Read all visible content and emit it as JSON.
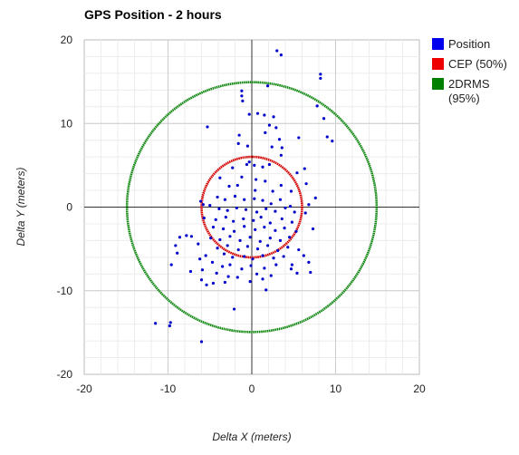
{
  "chart_data": {
    "type": "scatter",
    "title": "GPS Position - 2 hours",
    "xlabel": "Delta X (meters)",
    "ylabel": "Delta Y (meters)",
    "xlim": [
      -20,
      20
    ],
    "ylim": [
      -20,
      20
    ],
    "xticks": [
      -20,
      -10,
      0,
      10,
      20
    ],
    "yticks": [
      20,
      10,
      0,
      -10,
      -20
    ],
    "minor_grid_step": 2,
    "grid": true,
    "legend_position": "right",
    "legend": [
      {
        "label": "Position",
        "color": "#0000ee"
      },
      {
        "label": "CEP (50%)",
        "color": "#ee0000"
      },
      {
        "label": "2DRMS\n(95%)",
        "color": "#008000"
      }
    ],
    "circles": [
      {
        "name": "CEP (50%)",
        "radius": 6.0,
        "color": "#d40000"
      },
      {
        "name": "2DRMS (95%)",
        "radius": 14.9,
        "color": "#118811"
      }
    ],
    "series": [
      {
        "name": "Position",
        "color": "#0000cc",
        "points": [
          [
            3.0,
            18.7
          ],
          [
            3.5,
            18.2
          ],
          [
            8.2,
            15.9
          ],
          [
            8.2,
            15.4
          ],
          [
            -1.2,
            13.9
          ],
          [
            -1.2,
            13.3
          ],
          [
            -1.1,
            12.7
          ],
          [
            1.9,
            14.5
          ],
          [
            7.8,
            12.1
          ],
          [
            8.6,
            10.6
          ],
          [
            9.0,
            8.4
          ],
          [
            9.6,
            7.9
          ],
          [
            5.6,
            8.3
          ],
          [
            -5.3,
            9.6
          ],
          [
            2.6,
            10.8
          ],
          [
            1.5,
            11.0
          ],
          [
            2.1,
            9.8
          ],
          [
            2.9,
            9.5
          ],
          [
            -1.5,
            8.6
          ],
          [
            -0.3,
            11.1
          ],
          [
            0.7,
            11.2
          ],
          [
            1.6,
            8.9
          ],
          [
            3.3,
            8.1
          ],
          [
            -1.6,
            7.6
          ],
          [
            -0.5,
            7.3
          ],
          [
            2.4,
            7.2
          ],
          [
            3.6,
            7.1
          ],
          [
            3.5,
            6.2
          ],
          [
            -0.6,
            5.1
          ],
          [
            -0.3,
            5.4
          ],
          [
            0.3,
            5.0
          ],
          [
            1.3,
            4.8
          ],
          [
            2.1,
            5.1
          ],
          [
            6.3,
            4.6
          ],
          [
            5.4,
            4.1
          ],
          [
            6.5,
            2.8
          ],
          [
            7.6,
            1.1
          ],
          [
            6.8,
            0.3
          ],
          [
            6.4,
            -0.7
          ],
          [
            7.3,
            -2.6
          ],
          [
            -2.3,
            4.7
          ],
          [
            -1.2,
            3.6
          ],
          [
            0.5,
            3.3
          ],
          [
            1.6,
            3.1
          ],
          [
            -3.8,
            3.5
          ],
          [
            -2.7,
            2.5
          ],
          [
            -1.7,
            2.6
          ],
          [
            0.4,
            2.0
          ],
          [
            2.5,
            1.9
          ],
          [
            3.5,
            2.6
          ],
          [
            4.7,
            1.9
          ],
          [
            -4.1,
            1.2
          ],
          [
            -3.2,
            0.9
          ],
          [
            -2.0,
            1.3
          ],
          [
            -0.9,
            0.9
          ],
          [
            0.3,
            1.0
          ],
          [
            1.3,
            0.8
          ],
          [
            2.3,
            0.4
          ],
          [
            3.4,
            0.9
          ],
          [
            4.6,
            0.1
          ],
          [
            -6.1,
            0.7
          ],
          [
            -5.8,
            0.3
          ],
          [
            -5.0,
            0.2
          ],
          [
            -3.9,
            -0.2
          ],
          [
            -2.9,
            -0.4
          ],
          [
            -1.8,
            -0.1
          ],
          [
            -0.7,
            -0.3
          ],
          [
            0.6,
            -0.6
          ],
          [
            1.7,
            -0.2
          ],
          [
            2.8,
            -0.5
          ],
          [
            4.0,
            -0.1
          ],
          [
            5.1,
            -0.6
          ],
          [
            -5.7,
            -1.3
          ],
          [
            -4.3,
            -1.5
          ],
          [
            -3.1,
            -1.2
          ],
          [
            -2.2,
            -1.7
          ],
          [
            -1.0,
            -1.4
          ],
          [
            0.2,
            -1.6
          ],
          [
            1.1,
            -1.2
          ],
          [
            2.2,
            -1.9
          ],
          [
            3.6,
            -1.4
          ],
          [
            4.8,
            -1.8
          ],
          [
            -4.6,
            -2.4
          ],
          [
            -3.4,
            -2.6
          ],
          [
            -2.1,
            -2.9
          ],
          [
            -0.9,
            -2.3
          ],
          [
            0.4,
            -2.7
          ],
          [
            1.5,
            -2.4
          ],
          [
            2.8,
            -2.8
          ],
          [
            3.9,
            -2.5
          ],
          [
            5.3,
            -2.9
          ],
          [
            -8.6,
            -3.6
          ],
          [
            -7.8,
            -3.4
          ],
          [
            -7.2,
            -3.5
          ],
          [
            -4.9,
            -3.7
          ],
          [
            -3.8,
            -3.9
          ],
          [
            -2.6,
            -3.5
          ],
          [
            -1.4,
            -4.0
          ],
          [
            -0.2,
            -3.6
          ],
          [
            1.0,
            -4.1
          ],
          [
            2.2,
            -3.7
          ],
          [
            3.4,
            -4.0
          ],
          [
            4.5,
            -3.6
          ],
          [
            -9.1,
            -4.6
          ],
          [
            -6.4,
            -4.4
          ],
          [
            -4.1,
            -4.9
          ],
          [
            -2.9,
            -4.6
          ],
          [
            -1.6,
            -5.1
          ],
          [
            -0.5,
            -4.7
          ],
          [
            0.7,
            -5.0
          ],
          [
            1.9,
            -4.6
          ],
          [
            3.1,
            -5.2
          ],
          [
            4.3,
            -4.8
          ],
          [
            5.6,
            -5.1
          ],
          [
            -8.9,
            -5.5
          ],
          [
            -5.5,
            -5.8
          ],
          [
            -3.3,
            -5.6
          ],
          [
            -2.3,
            -6.0
          ],
          [
            -0.9,
            -5.9
          ],
          [
            0.1,
            -6.2
          ],
          [
            1.3,
            -5.8
          ],
          [
            2.6,
            -6.1
          ],
          [
            3.8,
            -5.9
          ],
          [
            6.2,
            -5.8
          ],
          [
            -6.2,
            -6.2
          ],
          [
            -4.7,
            -6.6
          ],
          [
            -3.5,
            -7.1
          ],
          [
            -2.6,
            -6.9
          ],
          [
            -1.2,
            -7.4
          ],
          [
            -0.1,
            -7.0
          ],
          [
            1.5,
            -7.3
          ],
          [
            2.9,
            -6.9
          ],
          [
            4.8,
            -6.9
          ],
          [
            6.8,
            -6.6
          ],
          [
            4.7,
            -7.4
          ],
          [
            -9.6,
            -6.9
          ],
          [
            -7.3,
            -7.7
          ],
          [
            -5.9,
            -7.5
          ],
          [
            -4.2,
            -7.9
          ],
          [
            -2.8,
            -8.3
          ],
          [
            -1.7,
            -8.4
          ],
          [
            0.6,
            -8.0
          ],
          [
            2.3,
            -8.2
          ],
          [
            5.4,
            -7.9
          ],
          [
            7.0,
            -7.8
          ],
          [
            -6.0,
            -8.7
          ],
          [
            -5.4,
            -9.3
          ],
          [
            -4.6,
            -9.1
          ],
          [
            -3.2,
            -9.0
          ],
          [
            -0.2,
            -8.9
          ],
          [
            1.3,
            -8.6
          ],
          [
            1.7,
            -9.9
          ],
          [
            -2.1,
            -12.2
          ],
          [
            -9.7,
            -13.8
          ],
          [
            -9.8,
            -14.2
          ],
          [
            -11.5,
            -13.9
          ],
          [
            -6.0,
            -16.1
          ]
        ]
      }
    ]
  }
}
